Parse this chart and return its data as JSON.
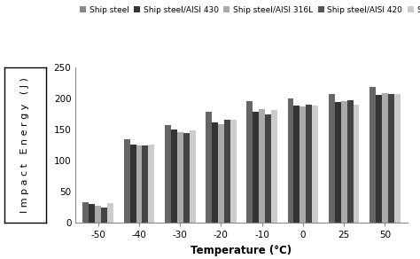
{
  "temperatures": [
    -50,
    -40,
    -30,
    -20,
    -10,
    0,
    25,
    50
  ],
  "series": {
    "Ship steel": [
      33,
      134,
      157,
      178,
      196,
      200,
      207,
      218
    ],
    "Ship steel/AISI 430": [
      30,
      126,
      150,
      162,
      178,
      188,
      194,
      205
    ],
    "Ship steel/AISI 316L": [
      27,
      124,
      146,
      158,
      183,
      187,
      196,
      209
    ],
    "Ship steel/AISI 420": [
      25,
      124,
      145,
      165,
      174,
      190,
      197,
      207
    ],
    "Ship steel/AISI 2304": [
      31,
      126,
      149,
      166,
      181,
      189,
      190,
      207
    ]
  },
  "bar_colors": [
    "#666666",
    "#333333",
    "#aaaaaa",
    "#444444",
    "#cccccc"
  ],
  "legend_colors": [
    "#888888",
    "#333333",
    "#aaaaaa",
    "#555555",
    "#cccccc"
  ],
  "ylabel": "Impact Energy (J)",
  "xlabel": "Temperature (°C)",
  "ylim": [
    0,
    250
  ],
  "yticks": [
    0,
    50,
    100,
    150,
    200,
    250
  ],
  "bar_width": 0.15,
  "background_color": "#ffffff",
  "legend_fontsize": 6.5,
  "axis_fontsize": 8.5,
  "tick_fontsize": 7.5
}
